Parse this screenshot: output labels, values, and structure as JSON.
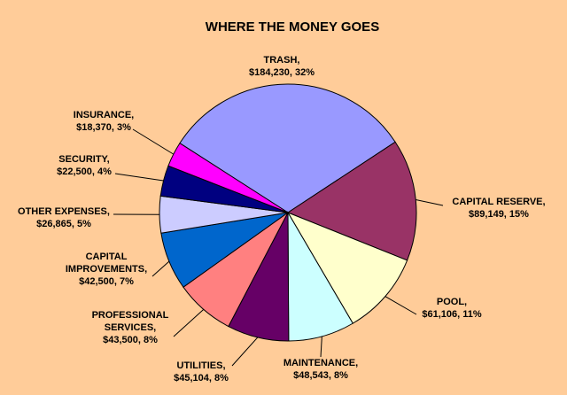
{
  "chart_data": {
    "type": "pie",
    "title": "WHERE THE MONEY GOES",
    "categories": [
      "TRASH,",
      "CAPITAL RESERVE,",
      "POOL,",
      "MAINTENANCE,",
      "UTILITIES,",
      "PROFESSIONAL SERVICES,",
      "CAPITAL IMPROVEMENTS,",
      "OTHER EXPENSES,",
      "SECURITY,",
      "INSURANCE,"
    ],
    "values": [
      184230,
      89149,
      61106,
      48543,
      45104,
      43500,
      42500,
      26865,
      22500,
      18370
    ],
    "value_labels": [
      "$184,230, 32%",
      "$89,149, 15%",
      "$61,106, 11%",
      "$48,543, 8%",
      "$45,104, 8%",
      "$43,500, 8%",
      "$42,500, 7%",
      "$26,865, 5%",
      "$22,500, 4%",
      "$18,370, 3%"
    ],
    "colors": [
      "#9999ff",
      "#993366",
      "#ffffcc",
      "#ccffff",
      "#660066",
      "#ff8080",
      "#0066cc",
      "#ccccff",
      "#000080",
      "#ff00ff"
    ]
  }
}
